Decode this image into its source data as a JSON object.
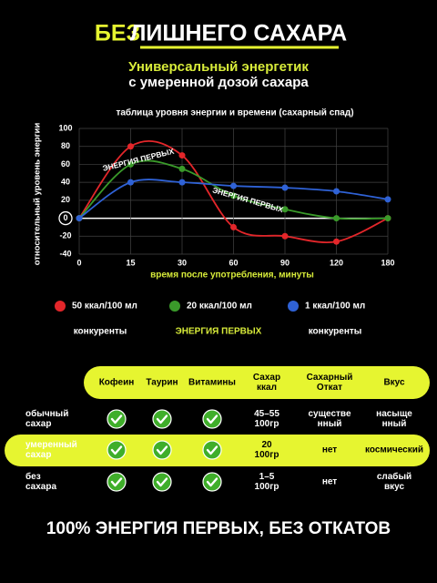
{
  "header": {
    "title_highlight": "БЕЗ",
    "title_rest": "ЛИШНЕГО САХАРА",
    "subtitle_1": "Универсальный энергетик",
    "subtitle_2": "с умеренной дозой сахара"
  },
  "chart_data": {
    "type": "line",
    "title": "таблица уровня энергии и времени (сахарный спад)",
    "y_label": "относительный уровень энергии",
    "x_label": "время после употребления, минуты",
    "categories": [
      "0",
      "15",
      "30",
      "60",
      "90",
      "120",
      "180"
    ],
    "series": [
      {
        "name": "50 ккал/100 мл",
        "color": "#e3262a",
        "values": [
          0,
          80,
          70,
          -10,
          -20,
          -26,
          0
        ]
      },
      {
        "name": "20 ккал/100 мл",
        "color": "#3a9a2a",
        "values": [
          0,
          60,
          55,
          25,
          10,
          0,
          0
        ]
      },
      {
        "name": "1 ккал/100 мл",
        "color": "#2f62d6",
        "values": [
          0,
          40,
          40,
          36,
          34,
          30,
          21
        ]
      }
    ],
    "legend_notes": [
      "конкуренты",
      "ЭНЕРГИЯ ПЕРВЫХ",
      "конкуренты"
    ],
    "annotations": [
      "ЭНЕРГИЯ ПЕРВЫХ",
      "ЭНЕРГИЯ ПЕРВЫХ"
    ],
    "ylim": [
      -40,
      100
    ],
    "yticks": [
      -40,
      -20,
      0,
      20,
      40,
      60,
      80,
      100
    ],
    "grid": true
  },
  "table": {
    "columns": [
      "Кофеин",
      "Таурин",
      "Витамины",
      "Сахар\nккал",
      "Сахарный\nОткат",
      "Вкус"
    ],
    "rows": [
      {
        "label": "обычный\nсахар",
        "checks": [
          true,
          true,
          true
        ],
        "sugar": "45–55\n100гр",
        "rollback": "существе\nнный",
        "taste": "насыще\nнный",
        "highlight": false
      },
      {
        "label": "умеренный\nсахар",
        "checks": [
          true,
          true,
          true
        ],
        "sugar": "20\n100гр",
        "rollback": "нет",
        "taste": "космический",
        "highlight": true
      },
      {
        "label": "без\nсахара",
        "checks": [
          true,
          true,
          true
        ],
        "sugar": "1–5\n100гр",
        "rollback": "нет",
        "taste": "слабый\nвкус",
        "highlight": false
      }
    ]
  },
  "footer": {
    "text": "100% ЭНЕРГИЯ ПЕРВЫХ, БЕЗ ОТКАТОВ"
  }
}
